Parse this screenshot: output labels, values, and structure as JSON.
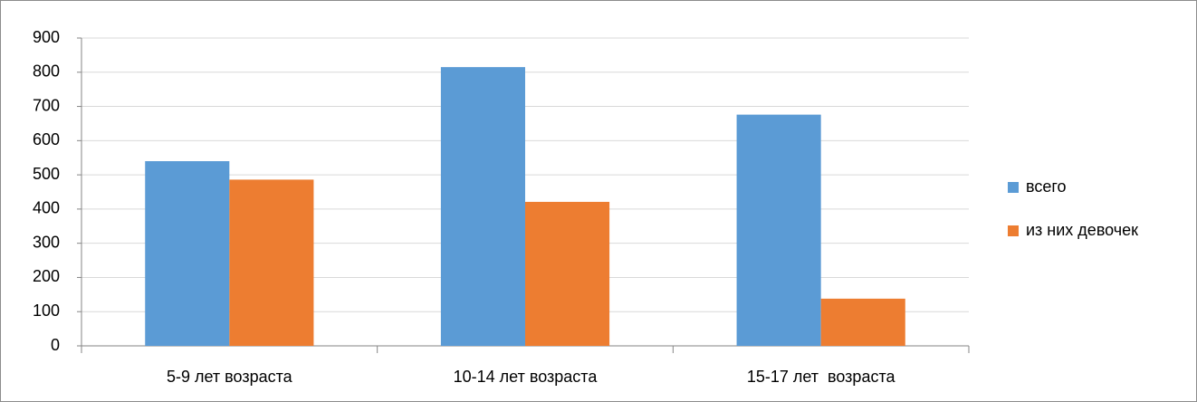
{
  "chart_data": {
    "type": "bar",
    "categories": [
      "5-9 лет возраста",
      "10-14 лет возраста",
      "15-17 лет  возраста"
    ],
    "series": [
      {
        "name": "всего",
        "color": "#5b9bd5",
        "values": [
          540,
          815,
          676
        ]
      },
      {
        "name": "из них девочек",
        "color": "#ed7d31",
        "values": [
          486,
          421,
          138
        ]
      }
    ],
    "ylim": [
      0,
      900
    ],
    "yticks": [
      0,
      100,
      200,
      300,
      400,
      500,
      600,
      700,
      800,
      900
    ],
    "grid": true,
    "legend": "right"
  }
}
